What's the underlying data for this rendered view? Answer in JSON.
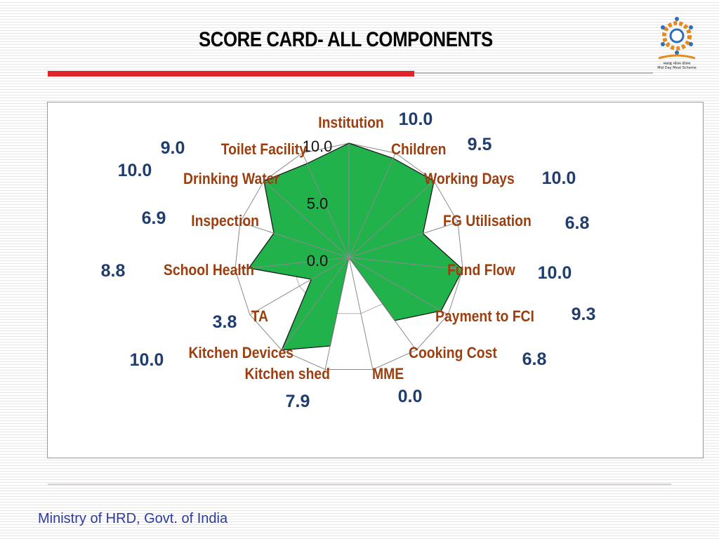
{
  "slide": {
    "title": "SCORE CARD- ALL COMPONENTS",
    "footer": "Ministry of HRD, Govt. of India",
    "logo_caption_line1": "मध्याह्न भोजन योजना",
    "logo_caption_line2": "Mid Day Meal Scheme"
  },
  "colors": {
    "accent_red": "#e0252a",
    "fill": "#22b24c",
    "category_label": "#9c3e0e",
    "value_label": "#1f3d6e"
  },
  "chart_data": {
    "type": "radar",
    "categories": [
      "Institution",
      "Children",
      "Working Days",
      "FG Utilisation",
      "Fund Flow",
      "Payment to FCI",
      "Cooking Cost",
      "MME",
      "Kitchen shed",
      "Kitchen Devices",
      "TA",
      "School Health",
      "Inspection",
      "Drinking Water",
      "Toilet Facility"
    ],
    "values": [
      10.0,
      9.5,
      10.0,
      6.8,
      10.0,
      9.3,
      6.8,
      0.0,
      7.9,
      10.0,
      3.8,
      8.8,
      6.9,
      10.0,
      9.0
    ],
    "value_labels": [
      "10.0",
      "9.5",
      "10.0",
      "6.8",
      "10.0",
      "9.3",
      "6.8",
      "0.0",
      "7.9",
      "10.0",
      "3.8",
      "8.8",
      "6.9",
      "10.0",
      "9.0"
    ],
    "rlim": [
      0,
      10
    ],
    "ticks": [
      "0.0",
      "5.0",
      "10.0"
    ],
    "grid": true,
    "legend": "none"
  }
}
